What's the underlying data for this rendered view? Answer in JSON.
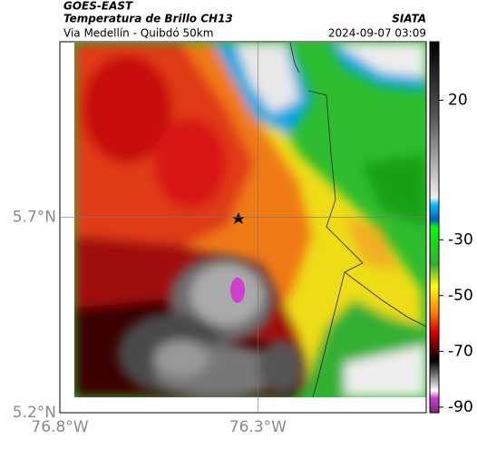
{
  "header": {
    "title": "GOES-EAST",
    "subtitle": "Temperatura de Brillo CH13",
    "source": "SIATA",
    "location": "Via Medellín - Quibdó 50km",
    "datetime": "2024-09-07 03:09"
  },
  "map": {
    "xlim": [
      -76.8,
      -75.875
    ],
    "ylim": [
      5.2,
      6.15
    ],
    "xticks": [
      {
        "value": -76.8,
        "label": "76.8°W"
      },
      {
        "value": -76.3,
        "label": "76.3°W"
      }
    ],
    "yticks": [
      {
        "value": 5.2,
        "label": "5.2°N"
      },
      {
        "value": 5.7,
        "label": "5.7°N"
      }
    ],
    "grid": true
  },
  "colorbar": {
    "lim": [
      -92,
      41
    ],
    "ticks": [
      20,
      -30,
      -50,
      -70,
      -90
    ]
  }
}
